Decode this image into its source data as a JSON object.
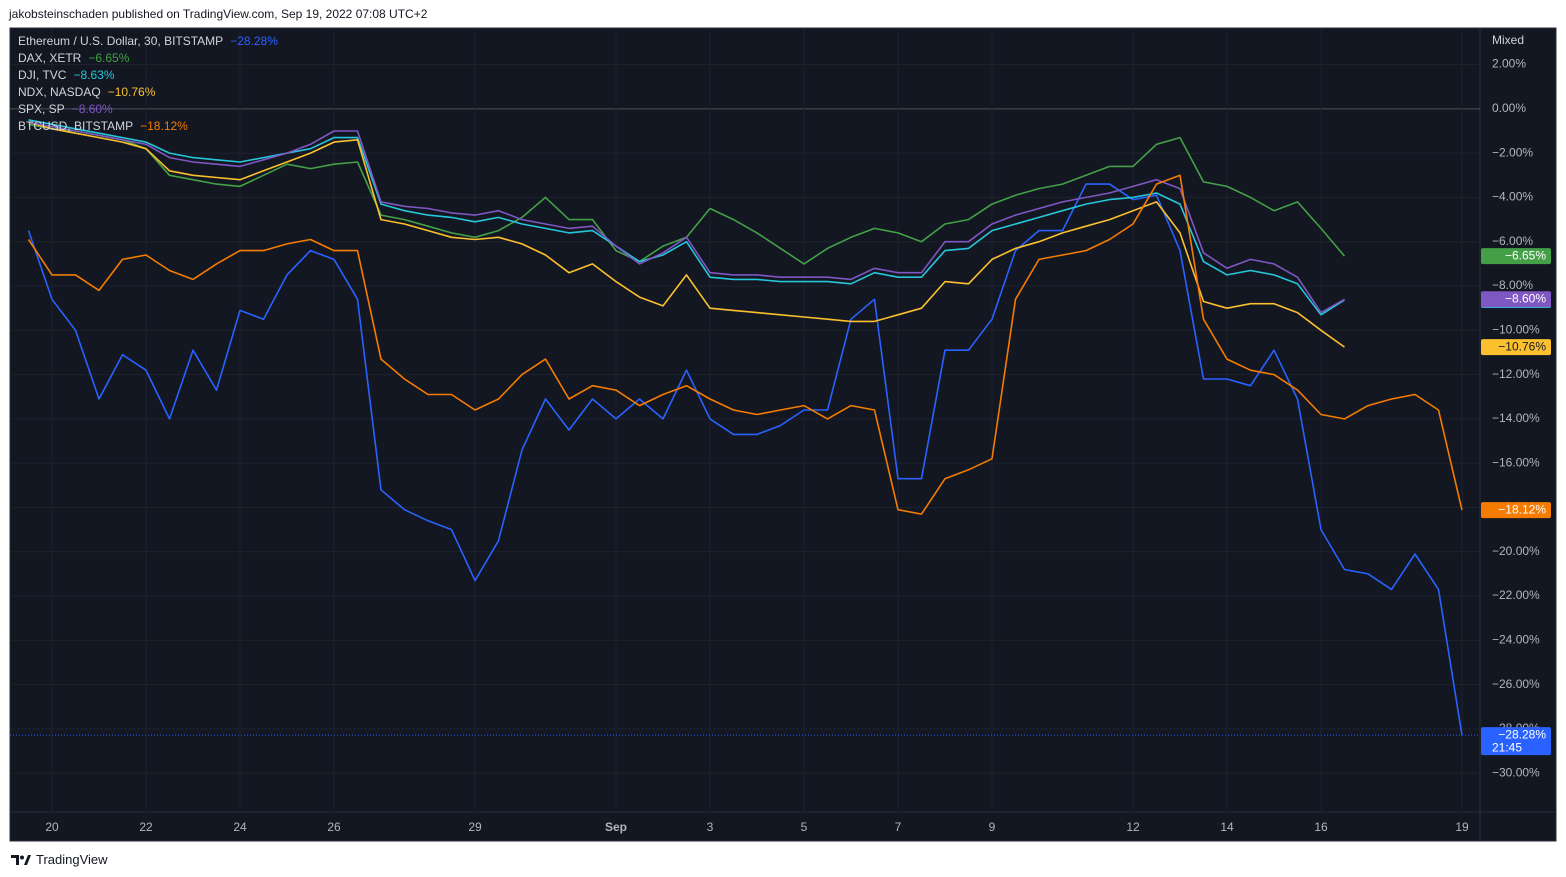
{
  "header": {
    "text": "jakobsteinschaden published on TradingView.com, Sep 19, 2022 07:08 UTC+2"
  },
  "footer": {
    "brand": "TradingView"
  },
  "chart_data": {
    "type": "line",
    "scale_mode": "Mixed",
    "price_countdown": "21:45",
    "categories": [
      null,
      "20",
      null,
      null,
      null,
      "22",
      null,
      null,
      null,
      "24",
      null,
      null,
      null,
      "26",
      null,
      null,
      null,
      null,
      null,
      "29",
      null,
      null,
      null,
      null,
      null,
      "Sep",
      null,
      null,
      null,
      "3",
      null,
      null,
      null,
      "5",
      null,
      null,
      null,
      "7",
      null,
      null,
      null,
      "9",
      null,
      null,
      null,
      null,
      null,
      "12",
      null,
      null,
      null,
      "14",
      null,
      null,
      null,
      "16",
      null,
      null,
      null,
      null,
      null,
      "19",
      null
    ],
    "ylim": [
      -31.75,
      3.65
    ],
    "yticks": [
      {
        "value": 2,
        "label": "2.00%"
      },
      {
        "value": 0,
        "label": "0.00%"
      },
      {
        "value": -2,
        "label": "−2.00%"
      },
      {
        "value": -4,
        "label": "−4.00%"
      },
      {
        "value": -6,
        "label": "−6.00%"
      },
      {
        "value": -8,
        "label": "−8.00%"
      },
      {
        "value": -10,
        "label": "−10.00%"
      },
      {
        "value": -12,
        "label": "−12.00%"
      },
      {
        "value": -14,
        "label": "−14.00%"
      },
      {
        "value": -16,
        "label": "−16.00%"
      },
      {
        "value": -18,
        "label": "−18.00%"
      },
      {
        "value": -20,
        "label": "−20.00%"
      },
      {
        "value": -22,
        "label": "−22.00%"
      },
      {
        "value": -24,
        "label": "−24.00%"
      },
      {
        "value": -26,
        "label": "−26.00%"
      },
      {
        "value": -28,
        "label": "−28.00%"
      },
      {
        "value": -30,
        "label": "−30.00%"
      }
    ],
    "grid": true,
    "series": [
      {
        "name": "Ethereum / U.S. Dollar, 30, BITSTAMP",
        "color": "#2962ff",
        "values": [
          -5.5,
          -8.6,
          -10,
          -13.1,
          -11.1,
          -11.8,
          -14,
          -10.9,
          -12.7,
          -9.1,
          -9.5,
          -7.5,
          -6.4,
          -6.8,
          -8.6,
          -17.2,
          -18.1,
          -18.6,
          -19,
          -21.3,
          -19.5,
          -15.4,
          -13.1,
          -14.5,
          -13.1,
          -14,
          -13.1,
          -14,
          -11.8,
          -14,
          -14.7,
          -14.7,
          -14.3,
          -13.6,
          -13.6,
          -9.5,
          -8.6,
          -16.7,
          -16.7,
          -10.9,
          -10.9,
          -9.5,
          -6.4,
          -5.5,
          -5.5,
          -3.4,
          -3.4,
          -4.1,
          -3.9,
          -6.4,
          -12.2,
          -12.2,
          -12.5,
          -10.9,
          -13.1,
          -19,
          -20.8,
          -21,
          -21.7,
          -20.1,
          -21.7,
          -28.28,
          null
        ],
        "value_labels": [
          null,
          null,
          null,
          null,
          null,
          null,
          null,
          null,
          null,
          null,
          null,
          null,
          null,
          null,
          null,
          null,
          null,
          null,
          null,
          null,
          null,
          null,
          null,
          null,
          null,
          null,
          null,
          null,
          null,
          null,
          null,
          null,
          null,
          null,
          null,
          null,
          null,
          null,
          null,
          null,
          null,
          null,
          null,
          null,
          null,
          null,
          null,
          null,
          null,
          null,
          null,
          null,
          null,
          null,
          null,
          null,
          null,
          null,
          null,
          null,
          null,
          "−28.28%",
          null
        ]
      },
      {
        "name": "DAX, XETR",
        "color": "#43a047",
        "values": [
          -0.7,
          -0.9,
          -1,
          -1.2,
          -1.4,
          -1.8,
          -3,
          -3.2,
          -3.4,
          -3.5,
          -3,
          -2.5,
          -2.7,
          -2.5,
          -2.4,
          -4.8,
          -5,
          -5.3,
          -5.6,
          -5.8,
          -5.5,
          -4.9,
          -4,
          -5,
          -5,
          -6.4,
          -6.9,
          -6.2,
          -5.8,
          -4.5,
          -5,
          -5.6,
          -6.3,
          -7,
          -6.3,
          -5.8,
          -5.4,
          -5.6,
          -6,
          -5.2,
          -5,
          -4.3,
          -3.9,
          -3.6,
          -3.4,
          -3,
          -2.6,
          -2.6,
          -1.6,
          -1.3,
          -3.3,
          -3.5,
          -4,
          -4.6,
          -4.2,
          -5.4,
          -6.65,
          null,
          null,
          null,
          null,
          null,
          null
        ],
        "value_labels": [
          null,
          null,
          null,
          null,
          null,
          null,
          null,
          null,
          null,
          null,
          null,
          null,
          null,
          null,
          null,
          null,
          null,
          null,
          null,
          null,
          null,
          null,
          null,
          null,
          null,
          null,
          null,
          null,
          null,
          null,
          null,
          null,
          null,
          null,
          null,
          null,
          null,
          null,
          null,
          null,
          null,
          null,
          null,
          null,
          null,
          null,
          null,
          null,
          null,
          null,
          null,
          null,
          null,
          null,
          null,
          null,
          "−6.65%",
          null,
          null,
          null,
          null,
          null,
          null
        ]
      },
      {
        "name": "DJI, TVC",
        "color": "#26c6da",
        "values": [
          -0.5,
          -0.7,
          -0.9,
          -1.1,
          -1.3,
          -1.5,
          -2,
          -2.2,
          -2.3,
          -2.4,
          -2.2,
          -2,
          -1.8,
          -1.3,
          -1.3,
          -4.3,
          -4.6,
          -4.8,
          -4.9,
          -5.1,
          -4.9,
          -5.2,
          -5.4,
          -5.6,
          -5.5,
          -6.2,
          -6.9,
          -6.6,
          -6,
          -7.6,
          -7.7,
          -7.7,
          -7.8,
          -7.8,
          -7.8,
          -7.9,
          -7.4,
          -7.6,
          -7.6,
          -6.4,
          -6.3,
          -5.5,
          -5.2,
          -4.9,
          -4.6,
          -4.3,
          -4.1,
          -4,
          -3.8,
          -4.3,
          -6.9,
          -7.5,
          -7.3,
          -7.5,
          -7.9,
          -9.3,
          -8.63,
          null,
          null,
          null,
          null,
          null,
          null
        ],
        "value_labels": [
          null,
          null,
          null,
          null,
          null,
          null,
          null,
          null,
          null,
          null,
          null,
          null,
          null,
          null,
          null,
          null,
          null,
          null,
          null,
          null,
          null,
          null,
          null,
          null,
          null,
          null,
          null,
          null,
          null,
          null,
          null,
          null,
          null,
          null,
          null,
          null,
          null,
          null,
          null,
          null,
          null,
          null,
          null,
          null,
          null,
          null,
          null,
          null,
          null,
          null,
          null,
          null,
          null,
          null,
          null,
          null,
          "−8.63%",
          null,
          null,
          null,
          null,
          null,
          null
        ]
      },
      {
        "name": "NDX, NASDAQ",
        "color": "#fbc02d",
        "values": [
          -0.6,
          -0.9,
          -1.1,
          -1.3,
          -1.5,
          -1.8,
          -2.8,
          -3,
          -3.1,
          -3.2,
          -2.8,
          -2.4,
          -2,
          -1.5,
          -1.4,
          -5,
          -5.2,
          -5.5,
          -5.8,
          -5.9,
          -5.8,
          -6.1,
          -6.6,
          -7.4,
          -7,
          -7.8,
          -8.5,
          -8.9,
          -7.5,
          -9,
          -9.1,
          -9.2,
          -9.3,
          -9.4,
          -9.5,
          -9.6,
          -9.6,
          -9.3,
          -9,
          -7.8,
          -7.9,
          -6.8,
          -6.3,
          -6,
          -5.6,
          -5.3,
          -5,
          -4.6,
          -4.2,
          -5.6,
          -8.7,
          -9,
          -8.8,
          -8.8,
          -9.2,
          -10,
          -10.76,
          null,
          null,
          null,
          null,
          null,
          null
        ],
        "value_labels": [
          null,
          null,
          null,
          null,
          null,
          null,
          null,
          null,
          null,
          null,
          null,
          null,
          null,
          null,
          null,
          null,
          null,
          null,
          null,
          null,
          null,
          null,
          null,
          null,
          null,
          null,
          null,
          null,
          null,
          null,
          null,
          null,
          null,
          null,
          null,
          null,
          null,
          null,
          null,
          null,
          null,
          null,
          null,
          null,
          null,
          null,
          null,
          null,
          null,
          null,
          null,
          null,
          null,
          null,
          null,
          null,
          "−10.76%",
          null,
          null,
          null,
          null,
          null,
          null
        ]
      },
      {
        "name": "SPX, SP",
        "color": "#7e57c2",
        "values": [
          -0.6,
          -0.8,
          -1,
          -1.2,
          -1.4,
          -1.6,
          -2.2,
          -2.4,
          -2.5,
          -2.6,
          -2.3,
          -2,
          -1.6,
          -1,
          -1,
          -4.2,
          -4.4,
          -4.5,
          -4.7,
          -4.8,
          -4.6,
          -5,
          -5.2,
          -5.4,
          -5.3,
          -6.2,
          -7,
          -6.5,
          -5.8,
          -7.4,
          -7.5,
          -7.5,
          -7.6,
          -7.6,
          -7.6,
          -7.7,
          -7.2,
          -7.4,
          -7.4,
          -6,
          -6,
          -5.2,
          -4.8,
          -4.5,
          -4.2,
          -4,
          -3.8,
          -3.5,
          -3.2,
          -3.6,
          -6.5,
          -7.2,
          -6.8,
          -7,
          -7.6,
          -9.2,
          -8.6,
          null,
          null,
          null,
          null,
          null,
          null
        ],
        "value_labels": [
          null,
          null,
          null,
          null,
          null,
          null,
          null,
          null,
          null,
          null,
          null,
          null,
          null,
          null,
          null,
          null,
          null,
          null,
          null,
          null,
          null,
          null,
          null,
          null,
          null,
          null,
          null,
          null,
          null,
          null,
          null,
          null,
          null,
          null,
          null,
          null,
          null,
          null,
          null,
          null,
          null,
          null,
          null,
          null,
          null,
          null,
          null,
          null,
          null,
          null,
          null,
          null,
          null,
          null,
          null,
          null,
          "−8.60%",
          null,
          null,
          null,
          null,
          null,
          null
        ]
      },
      {
        "name": "BTCUSD, BITSTAMP",
        "color": "#f57c00",
        "values": [
          -5.9,
          -7.5,
          -7.5,
          -8.2,
          -6.8,
          -6.6,
          -7.3,
          -7.7,
          -7,
          -6.4,
          -6.4,
          -6.1,
          -5.9,
          -6.4,
          -6.4,
          -11.3,
          -12.2,
          -12.9,
          -12.9,
          -13.6,
          -13.1,
          -12,
          -11.3,
          -13.1,
          -12.5,
          -12.7,
          -13.4,
          -12.9,
          -12.5,
          -13.1,
          -13.6,
          -13.8,
          -13.6,
          -13.4,
          -14,
          -13.4,
          -13.6,
          -18.1,
          -18.3,
          -16.7,
          -16.3,
          -15.8,
          -8.6,
          -6.8,
          -6.6,
          -6.4,
          -5.9,
          -5.2,
          -3.4,
          -3,
          -9.5,
          -11.3,
          -11.8,
          -12,
          -12.7,
          -13.8,
          -14,
          -13.4,
          -13.1,
          -12.9,
          -13.6,
          -18.12,
          null
        ],
        "value_labels": [
          null,
          null,
          null,
          null,
          null,
          null,
          null,
          null,
          null,
          null,
          null,
          null,
          null,
          null,
          null,
          null,
          null,
          null,
          null,
          null,
          null,
          null,
          null,
          null,
          null,
          null,
          null,
          null,
          null,
          null,
          null,
          null,
          null,
          null,
          null,
          null,
          null,
          null,
          null,
          null,
          null,
          null,
          null,
          null,
          null,
          null,
          null,
          null,
          null,
          null,
          null,
          null,
          null,
          null,
          null,
          null,
          null,
          null,
          null,
          null,
          null,
          "−18.12%",
          null
        ]
      }
    ]
  }
}
